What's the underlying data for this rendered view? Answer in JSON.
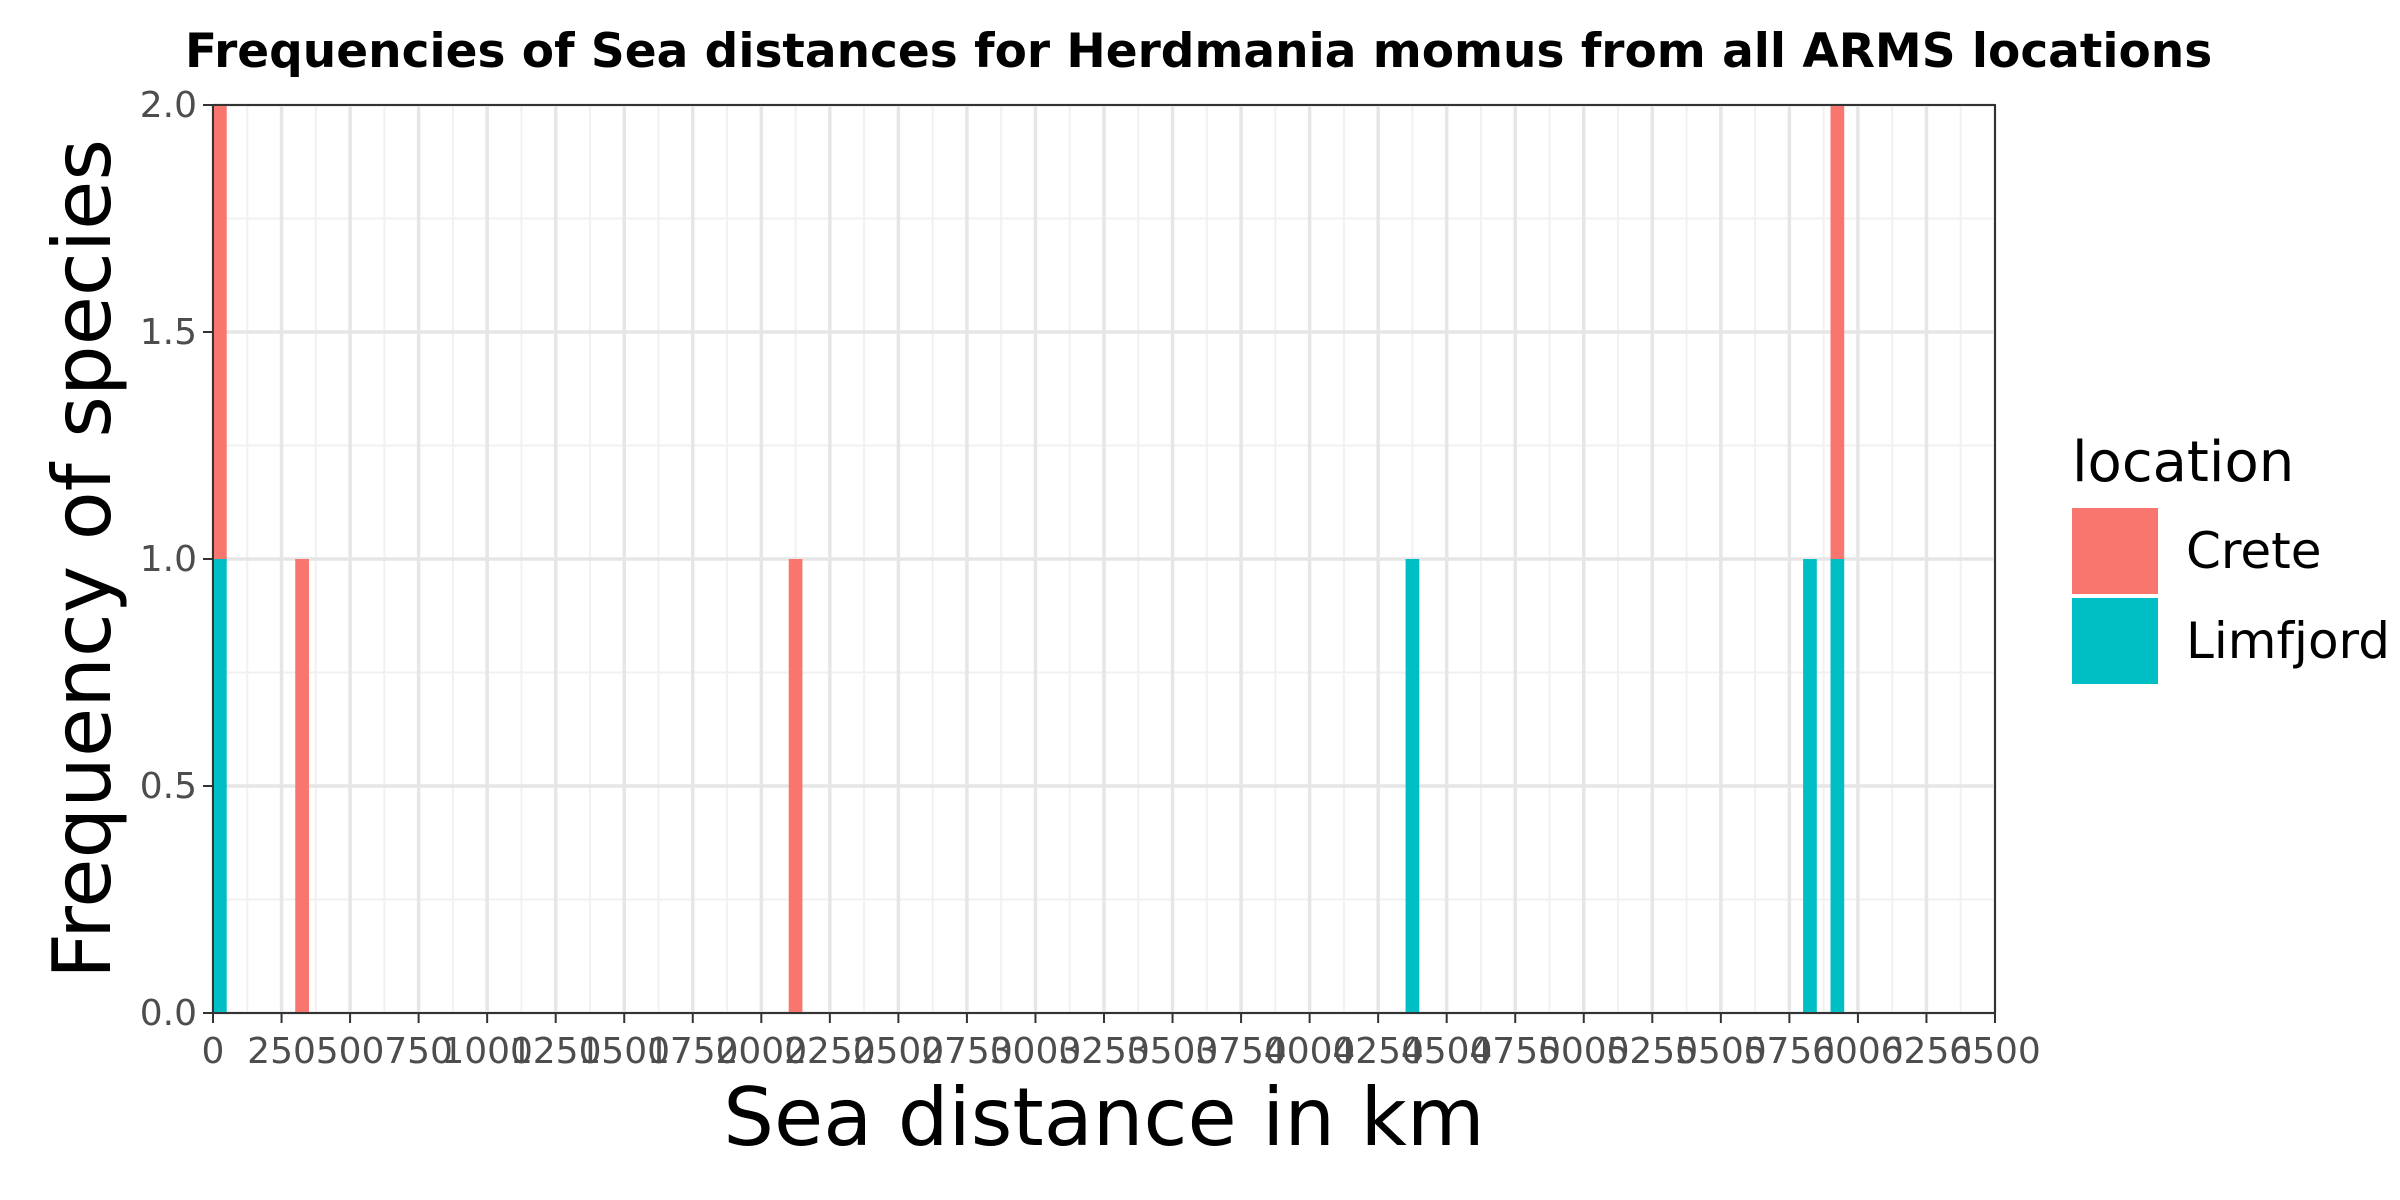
{
  "chart_data": {
    "type": "bar",
    "title": "Frequencies of Sea distances for Herdmania momus from all ARMS locations",
    "xlabel": "Sea distance in km",
    "ylabel": "Frequency of species",
    "xlim": [
      0,
      6500
    ],
    "ylim": [
      0,
      2
    ],
    "x_ticks": [
      "0",
      "250",
      "500",
      "750",
      "1000",
      "1250",
      "1500",
      "1750",
      "2000",
      "2250",
      "2500",
      "2750",
      "3000",
      "3250",
      "3500",
      "3750",
      "4000",
      "4250",
      "4500",
      "4750",
      "5000",
      "5250",
      "5500",
      "5750",
      "6000",
      "6250",
      "6500"
    ],
    "y_ticks": [
      "0.0",
      "0.5",
      "1.0",
      "1.5",
      "2.0"
    ],
    "grid": true,
    "stacked": true,
    "bin_width": 50,
    "legend": {
      "title": "location",
      "position": "right"
    },
    "series": [
      {
        "name": "Crete",
        "color": "#F8766D",
        "x": [
          25,
          325,
          2125,
          5925
        ],
        "values": [
          1,
          1,
          1,
          1
        ]
      },
      {
        "name": "Limfjord",
        "color": "#00BFC4",
        "x": [
          25,
          4375,
          5825,
          5925
        ],
        "values": [
          1,
          1,
          1,
          1
        ]
      }
    ]
  }
}
